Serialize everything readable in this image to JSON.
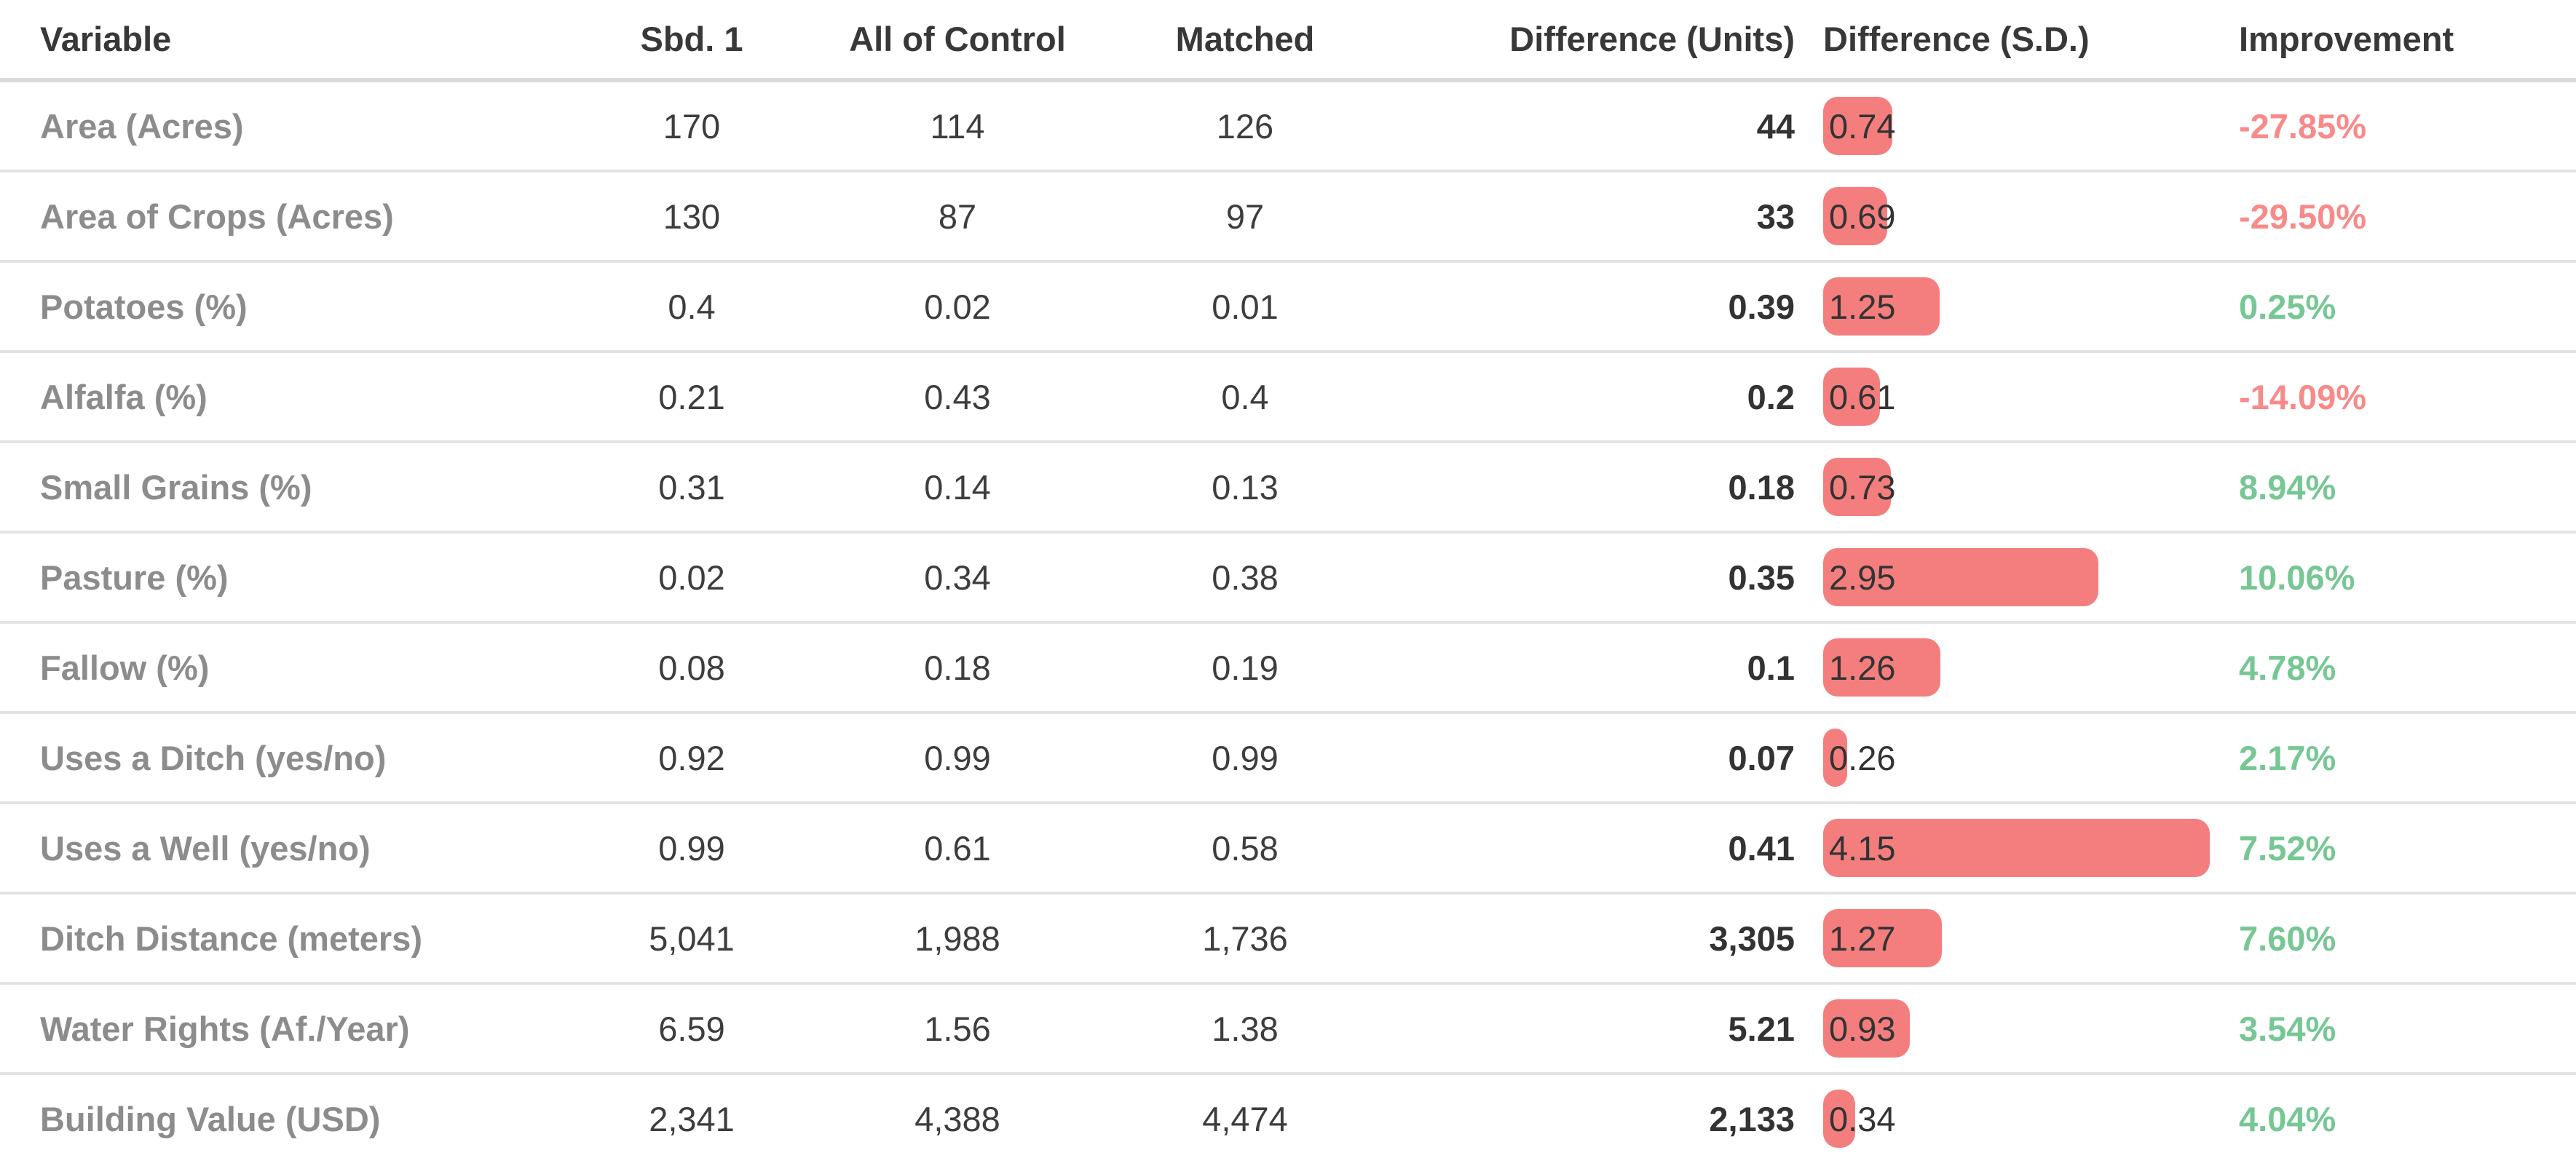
{
  "table": {
    "columns": [
      {
        "key": "variable",
        "label": "Variable"
      },
      {
        "key": "sbd1",
        "label": "Sbd. 1"
      },
      {
        "key": "control",
        "label": "All of Control"
      },
      {
        "key": "matched",
        "label": "Matched"
      },
      {
        "key": "diff_units",
        "label": "Difference (Units)"
      },
      {
        "key": "diff_sd",
        "label": "Difference (S.D.)"
      },
      {
        "key": "improvement",
        "label": "Improvement"
      }
    ],
    "rows": [
      {
        "variable": "Area (Acres)",
        "sbd1": "170",
        "control": "114",
        "matched": "126",
        "diff_units": "44",
        "diff_sd": "0.74",
        "diff_sd_value": 0.74,
        "improvement": "-27.85%"
      },
      {
        "variable": "Area of Crops (Acres)",
        "sbd1": "130",
        "control": "87",
        "matched": "97",
        "diff_units": "33",
        "diff_sd": "0.69",
        "diff_sd_value": 0.69,
        "improvement": "-29.50%"
      },
      {
        "variable": "Potatoes (%)",
        "sbd1": "0.4",
        "control": "0.02",
        "matched": "0.01",
        "diff_units": "0.39",
        "diff_sd": "1.25",
        "diff_sd_value": 1.25,
        "improvement": "0.25%"
      },
      {
        "variable": "Alfalfa (%)",
        "sbd1": "0.21",
        "control": "0.43",
        "matched": "0.4",
        "diff_units": "0.2",
        "diff_sd": "0.61",
        "diff_sd_value": 0.61,
        "improvement": "-14.09%"
      },
      {
        "variable": "Small Grains (%)",
        "sbd1": "0.31",
        "control": "0.14",
        "matched": "0.13",
        "diff_units": "0.18",
        "diff_sd": "0.73",
        "diff_sd_value": 0.73,
        "improvement": "8.94%"
      },
      {
        "variable": "Pasture (%)",
        "sbd1": "0.02",
        "control": "0.34",
        "matched": "0.38",
        "diff_units": "0.35",
        "diff_sd": "2.95",
        "diff_sd_value": 2.95,
        "improvement": "10.06%"
      },
      {
        "variable": "Fallow (%)",
        "sbd1": "0.08",
        "control": "0.18",
        "matched": "0.19",
        "diff_units": "0.1",
        "diff_sd": "1.26",
        "diff_sd_value": 1.26,
        "improvement": "4.78%"
      },
      {
        "variable": "Uses a Ditch (yes/no)",
        "sbd1": "0.92",
        "control": "0.99",
        "matched": "0.99",
        "diff_units": "0.07",
        "diff_sd": "0.26",
        "diff_sd_value": 0.26,
        "improvement": "2.17%"
      },
      {
        "variable": "Uses a Well (yes/no)",
        "sbd1": "0.99",
        "control": "0.61",
        "matched": "0.58",
        "diff_units": "0.41",
        "diff_sd": "4.15",
        "diff_sd_value": 4.15,
        "improvement": "7.52%"
      },
      {
        "variable": "Ditch Distance (meters)",
        "sbd1": "5,041",
        "control": "1,988",
        "matched": "1,736",
        "diff_units": "3,305",
        "diff_sd": "1.27",
        "diff_sd_value": 1.27,
        "improvement": "7.60%"
      },
      {
        "variable": "Water Rights (Af./Year)",
        "sbd1": "6.59",
        "control": "1.56",
        "matched": "1.38",
        "diff_units": "5.21",
        "diff_sd": "0.93",
        "diff_sd_value": 0.93,
        "improvement": "3.54%"
      },
      {
        "variable": "Building Value (USD)",
        "sbd1": "2,341",
        "control": "4,388",
        "matched": "4,474",
        "diff_units": "2,133",
        "diff_sd": "0.34",
        "diff_sd_value": 0.34,
        "improvement": "4.04%"
      }
    ]
  },
  "colors": {
    "sd_bar": "#F47E7E",
    "improvement_positive": "#76C794",
    "improvement_negative": "#F88A8A",
    "header_text": "#383838",
    "row_label": "#8C8C8C",
    "value_text": "#3D3D3D",
    "header_separator": "#DADADA",
    "row_separator": "#E3E3E3"
  },
  "chart_data": {
    "type": "table",
    "title": "",
    "columns": [
      "Variable",
      "Sbd. 1",
      "All of Control",
      "Matched",
      "Difference (Units)",
      "Difference (S.D.)",
      "Improvement"
    ],
    "categories": [
      "Area (Acres)",
      "Area of Crops (Acres)",
      "Potatoes (%)",
      "Alfalfa (%)",
      "Small Grains (%)",
      "Pasture (%)",
      "Fallow (%)",
      "Uses a Ditch (yes/no)",
      "Uses a Well (yes/no)",
      "Ditch Distance (meters)",
      "Water Rights (Af./Year)",
      "Building Value (USD)"
    ],
    "series": [
      {
        "name": "Sbd. 1",
        "values": [
          170,
          130,
          0.4,
          0.21,
          0.31,
          0.02,
          0.08,
          0.92,
          0.99,
          5041,
          6.59,
          2341
        ]
      },
      {
        "name": "All of Control",
        "values": [
          114,
          87,
          0.02,
          0.43,
          0.14,
          0.34,
          0.18,
          0.99,
          0.61,
          1988,
          1.56,
          4388
        ]
      },
      {
        "name": "Matched",
        "values": [
          126,
          97,
          0.01,
          0.4,
          0.13,
          0.38,
          0.19,
          0.99,
          0.58,
          1736,
          1.38,
          4474
        ]
      },
      {
        "name": "Difference (Units)",
        "values": [
          44,
          33,
          0.39,
          0.2,
          0.18,
          0.35,
          0.1,
          0.07,
          0.41,
          3305,
          5.21,
          2133
        ]
      },
      {
        "name": "Difference (S.D.)",
        "values": [
          0.74,
          0.69,
          1.25,
          0.61,
          0.73,
          2.95,
          1.26,
          0.26,
          4.15,
          1.27,
          0.93,
          0.34
        ]
      },
      {
        "name": "Improvement (%)",
        "values": [
          -27.85,
          -29.5,
          0.25,
          -14.09,
          8.94,
          10.06,
          4.78,
          2.17,
          7.52,
          7.6,
          3.54,
          4.04
        ]
      }
    ],
    "notes": "Difference (S.D.) column rendered as left-aligned pink pill bars proportional to value; Improvement rendered green when positive, salmon-red when negative."
  }
}
